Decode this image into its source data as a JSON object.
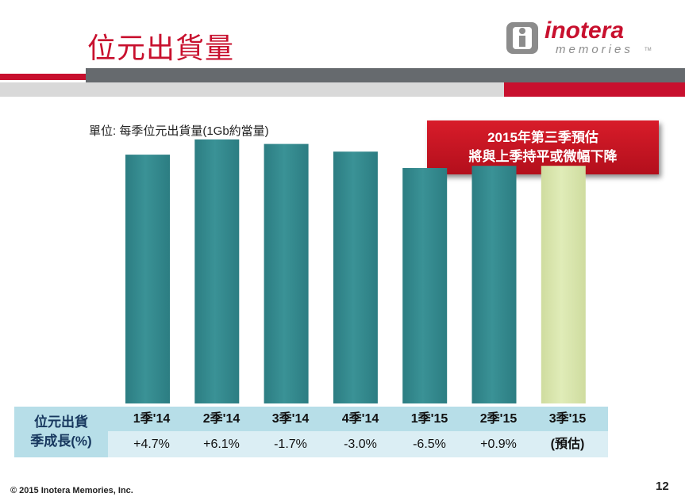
{
  "slide": {
    "title": "位元出貨量",
    "unit_label": "單位: 每季位元出貨量(1Gb約當量)",
    "callout_line1": "2015年第三季預估",
    "callout_line2": "將與上季持平或微幅下降",
    "footer": "© 2015 Inotera Memories, Inc.",
    "page_number": "12"
  },
  "logo": {
    "name": "inotera",
    "sub": "memories",
    "tm": "TM",
    "colors": {
      "name": "#c8102e",
      "sub": "#8c8c8c"
    }
  },
  "table": {
    "row_label_line1": "位元出貨",
    "row_label_line2": "季成長(%)",
    "quarters": [
      "1季'14",
      "2季'14",
      "3季'14",
      "4季'14",
      "1季'15",
      "2季'15",
      "3季'15"
    ],
    "growth": [
      "+4.7%",
      "+6.1%",
      "-1.7%",
      "-3.0%",
      "-6.5%",
      "+0.9%",
      "(預估)"
    ]
  },
  "chart_data": {
    "type": "bar",
    "categories": [
      "1季'14",
      "2季'14",
      "3季'14",
      "4季'14",
      "1季'15",
      "2季'15",
      "3季'15"
    ],
    "values": [
      100,
      106.1,
      104.3,
      101.2,
      94.6,
      95.5,
      95.5
    ],
    "ylim": [
      0,
      115
    ],
    "estimated": [
      false,
      false,
      false,
      false,
      false,
      false,
      true
    ],
    "colors": {
      "actual": "#3a9296",
      "estimate": "#e0ecb8"
    },
    "grid": false,
    "legend": "none"
  }
}
